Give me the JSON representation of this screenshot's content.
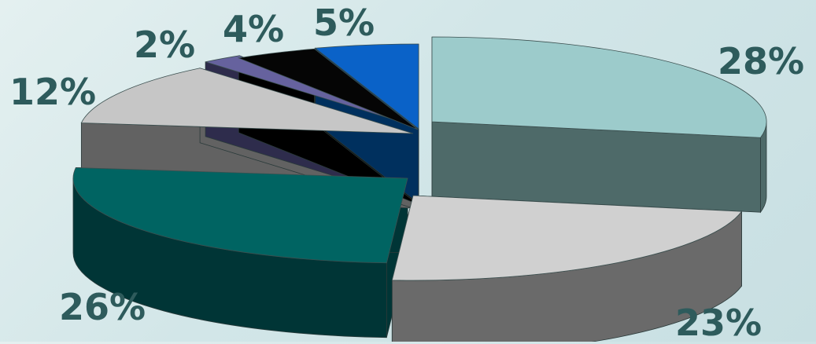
{
  "chart_data": {
    "type": "pie",
    "style": "3d-exploded",
    "legend": "none",
    "slices": [
      {
        "label": "28%",
        "value": 28,
        "color": "#9ccbcb",
        "side": "#4e6a69"
      },
      {
        "label": "23%",
        "value": 23,
        "color": "#d0d0d0",
        "side": "#6a6a6a"
      },
      {
        "label": "26%",
        "value": 26,
        "color": "#006462",
        "side": "#003536"
      },
      {
        "label": "12%",
        "value": 12,
        "color": "#c6c6c6",
        "side": "#626262"
      },
      {
        "label": "2%",
        "value": 2,
        "color": "#66629e",
        "side": "#2e2c4c"
      },
      {
        "label": "4%",
        "value": 4,
        "color": "#050505",
        "side": "#000000"
      },
      {
        "label": "5%",
        "value": 5,
        "color": "#0a62c8",
        "side": "#00305e"
      }
    ],
    "label_color": "#2e5b5c"
  }
}
